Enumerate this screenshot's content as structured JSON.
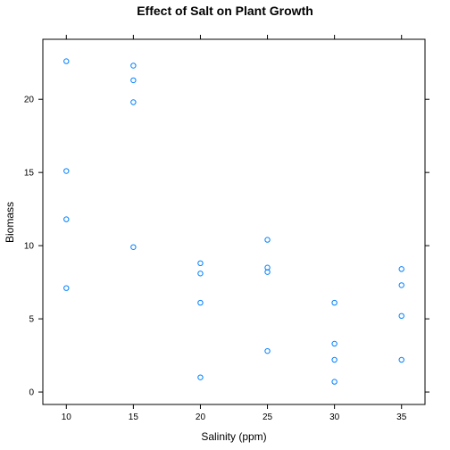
{
  "chart_data": {
    "type": "scatter",
    "title": "Effect of Salt on Plant Growth",
    "xlabel": "Salinity (ppm)",
    "ylabel": "Biomass",
    "xlim": [
      8.25,
      36.75
    ],
    "ylim": [
      -0.85,
      24.1
    ],
    "xticks": [
      10,
      15,
      20,
      25,
      30,
      35
    ],
    "yticks": [
      0,
      5,
      10,
      15,
      20
    ],
    "grid": false,
    "point_color": "#0080ff",
    "points": [
      {
        "x": 10,
        "y": 22.6
      },
      {
        "x": 10,
        "y": 15.1
      },
      {
        "x": 10,
        "y": 11.8
      },
      {
        "x": 10,
        "y": 7.1
      },
      {
        "x": 15,
        "y": 22.3
      },
      {
        "x": 15,
        "y": 21.3
      },
      {
        "x": 15,
        "y": 19.8
      },
      {
        "x": 15,
        "y": 9.9
      },
      {
        "x": 20,
        "y": 8.8
      },
      {
        "x": 20,
        "y": 8.1
      },
      {
        "x": 20,
        "y": 6.1
      },
      {
        "x": 20,
        "y": 1.0
      },
      {
        "x": 25,
        "y": 10.4
      },
      {
        "x": 25,
        "y": 8.5
      },
      {
        "x": 25,
        "y": 8.2
      },
      {
        "x": 25,
        "y": 2.8
      },
      {
        "x": 30,
        "y": 6.1
      },
      {
        "x": 30,
        "y": 3.3
      },
      {
        "x": 30,
        "y": 2.2
      },
      {
        "x": 30,
        "y": 0.7
      },
      {
        "x": 35,
        "y": 8.4
      },
      {
        "x": 35,
        "y": 7.3
      },
      {
        "x": 35,
        "y": 5.2
      },
      {
        "x": 35,
        "y": 2.2
      }
    ]
  }
}
